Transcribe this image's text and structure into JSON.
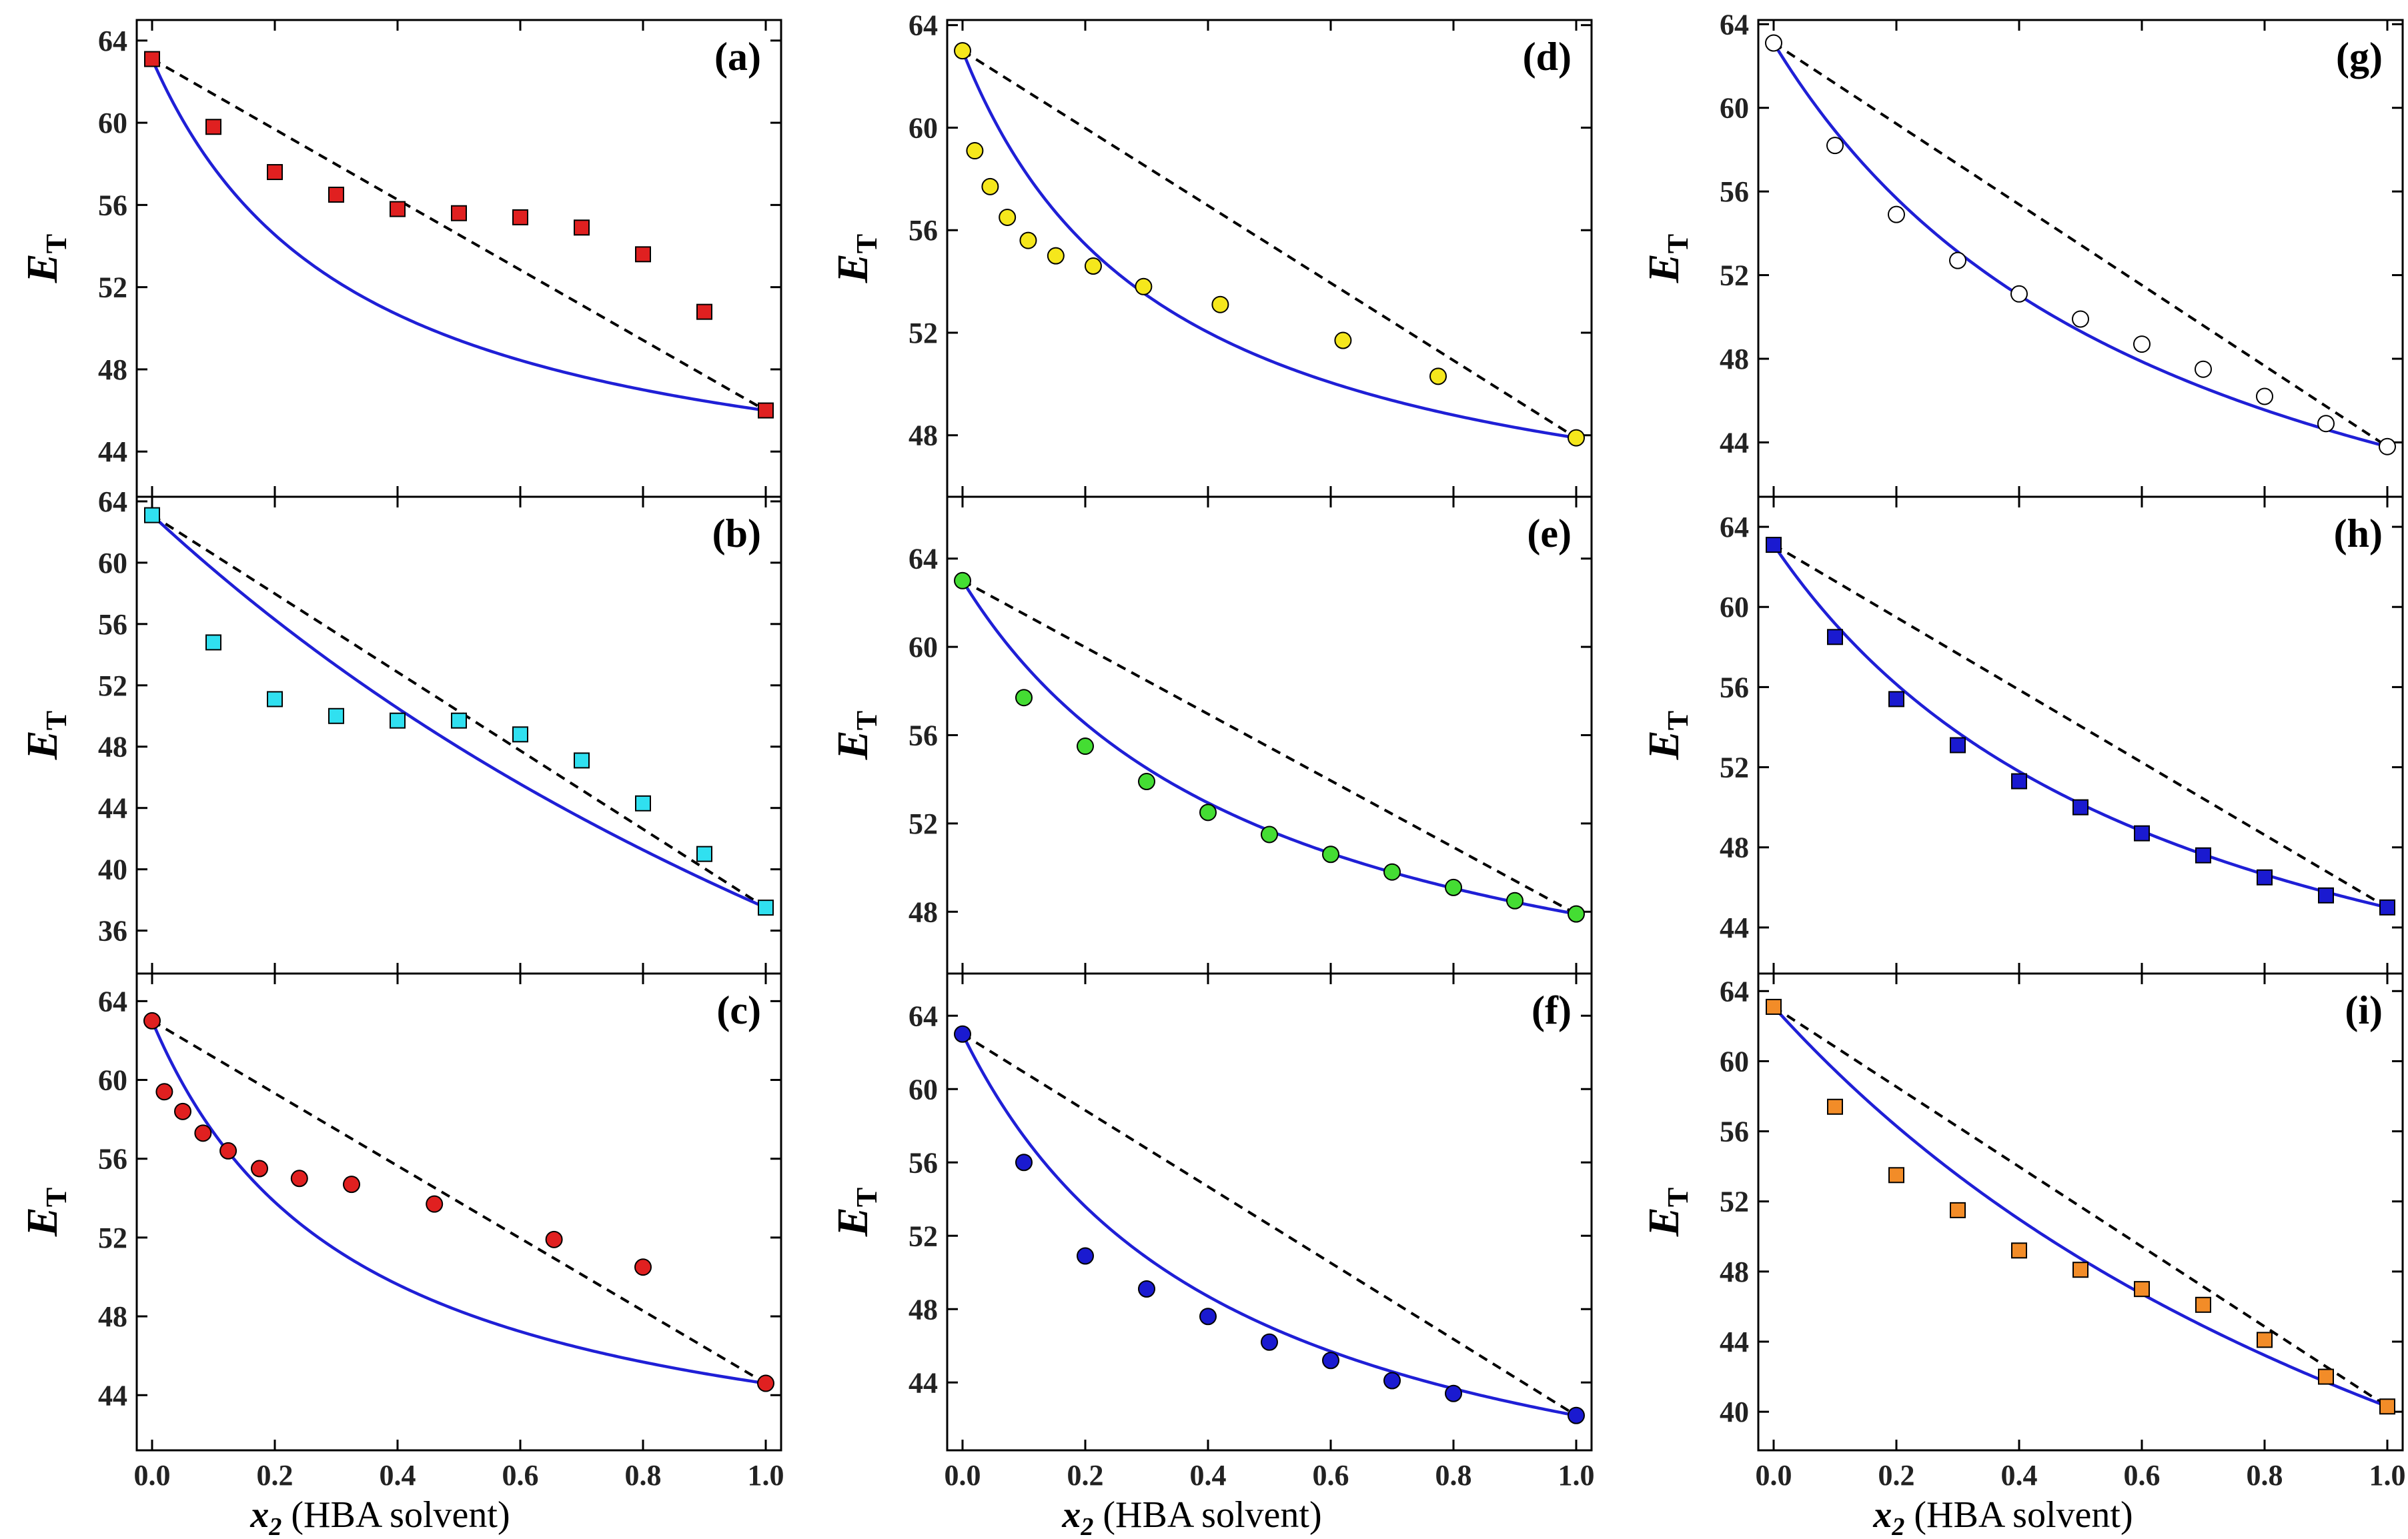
{
  "figure": {
    "columns": [
      {
        "xlabel_var": "x",
        "xlabel_sub": "2",
        "xlabel_rest": " (HBA solvent)"
      },
      {
        "xlabel_var": "x",
        "xlabel_sub": "2",
        "xlabel_rest": " (HBA solvent)"
      },
      {
        "xlabel_var": "x",
        "xlabel_sub": "2",
        "xlabel_rest": " (HBA solvent)"
      }
    ],
    "ylabel_main": "E",
    "ylabel_sub": "T",
    "x_ticks": [
      "0.0",
      "0.2",
      "0.4",
      "0.6",
      "0.8",
      "1.0"
    ]
  },
  "chart_data": [
    {
      "id": "a",
      "label": "(a)",
      "type": "scatter",
      "marker": "square",
      "color": "#e02020",
      "xlabel": "x2 (HBA solvent)",
      "ylabel": "ET",
      "xlim": [
        -0.025,
        1.025
      ],
      "ylim": [
        41.8,
        65
      ],
      "yticks": [
        44,
        48,
        52,
        56,
        60,
        64
      ],
      "x": [
        0.0,
        0.1,
        0.2,
        0.3,
        0.4,
        0.5,
        0.6,
        0.7,
        0.8,
        0.9,
        1.0
      ],
      "y": [
        63.1,
        59.8,
        57.6,
        56.5,
        55.8,
        55.6,
        55.4,
        54.9,
        53.6,
        50.8,
        46.0
      ],
      "ideal": [
        63.1,
        46.0
      ],
      "curve": {
        "y0": 63.1,
        "y1": 46.0,
        "k": 3.0
      }
    },
    {
      "id": "b",
      "label": "(b)",
      "type": "scatter",
      "marker": "square",
      "color": "#30e0f0",
      "xlabel": "x2 (HBA solvent)",
      "ylabel": "ET",
      "xlim": [
        -0.025,
        1.025
      ],
      "ylim": [
        33.2,
        64.3
      ],
      "yticks": [
        36,
        40,
        44,
        48,
        52,
        56,
        60,
        64
      ],
      "x": [
        0.0,
        0.1,
        0.2,
        0.3,
        0.4,
        0.5,
        0.6,
        0.7,
        0.8,
        0.9,
        1.0
      ],
      "y": [
        63.1,
        54.8,
        51.1,
        50.0,
        49.7,
        49.7,
        48.8,
        47.1,
        44.3,
        41.0,
        37.5
      ],
      "ideal": [
        63.1,
        37.5
      ],
      "curve": {
        "y0": 63.1,
        "y1": 37.5,
        "k": 0.45
      }
    },
    {
      "id": "c",
      "label": "(c)",
      "type": "scatter",
      "marker": "circle",
      "color": "#e02020",
      "xlabel": "x2 (HBA solvent)",
      "ylabel": "ET",
      "xlim": [
        -0.025,
        1.025
      ],
      "ylim": [
        41.2,
        65.4
      ],
      "yticks": [
        44,
        48,
        52,
        56,
        60,
        64
      ],
      "x": [
        0.0,
        0.02,
        0.05,
        0.083,
        0.124,
        0.175,
        0.24,
        0.325,
        0.46,
        0.655,
        0.8,
        1.0
      ],
      "y": [
        63.0,
        59.4,
        58.4,
        57.3,
        56.4,
        55.5,
        55.0,
        54.7,
        53.7,
        51.9,
        50.5,
        44.6
      ],
      "ideal": [
        63.0,
        44.6
      ],
      "curve": {
        "y0": 63.0,
        "y1": 44.6,
        "k": 3.0
      }
    },
    {
      "id": "d",
      "label": "(d)",
      "type": "scatter",
      "marker": "circle",
      "color": "#f5e71c",
      "xlabel": "x2 (HBA solvent)",
      "ylabel": "ET",
      "xlim": [
        -0.025,
        1.025
      ],
      "ylim": [
        45.6,
        64.2
      ],
      "yticks": [
        48,
        52,
        56,
        60,
        64
      ],
      "x": [
        0.0,
        0.02,
        0.045,
        0.073,
        0.107,
        0.152,
        0.213,
        0.295,
        0.42,
        0.62,
        0.775,
        1.0
      ],
      "y": [
        63.0,
        59.1,
        57.7,
        56.5,
        55.6,
        55.0,
        54.6,
        53.8,
        53.1,
        51.7,
        50.3,
        47.9
      ],
      "ideal": [
        63.0,
        47.9
      ],
      "curve": {
        "y0": 63.0,
        "y1": 47.9,
        "k": 3.0
      }
    },
    {
      "id": "e",
      "label": "(e)",
      "type": "scatter",
      "marker": "circle",
      "color": "#44dd33",
      "xlabel": "x2 (HBA solvent)",
      "ylabel": "ET",
      "xlim": [
        -0.025,
        1.025
      ],
      "ylim": [
        45.2,
        66.8
      ],
      "yticks": [
        48,
        52,
        56,
        60,
        64
      ],
      "x": [
        0.0,
        0.1,
        0.2,
        0.3,
        0.4,
        0.5,
        0.6,
        0.7,
        0.8,
        0.9,
        1.0
      ],
      "y": [
        63.0,
        57.7,
        55.5,
        53.9,
        52.5,
        51.5,
        50.6,
        49.8,
        49.1,
        48.5,
        47.9
      ],
      "ideal": [
        63.0,
        47.9
      ],
      "curve": {
        "y0": 63.0,
        "y1": 47.9,
        "k": 2.0
      }
    },
    {
      "id": "f",
      "label": "(f)",
      "type": "scatter",
      "marker": "circle",
      "color": "#1a1ad0",
      "xlabel": "x2 (HBA solvent)",
      "ylabel": "ET",
      "xlim": [
        -0.025,
        1.025
      ],
      "ylim": [
        40.3,
        66.3
      ],
      "yticks": [
        44,
        48,
        52,
        56,
        60,
        64
      ],
      "x": [
        0.0,
        0.1,
        0.2,
        0.3,
        0.4,
        0.5,
        0.6,
        0.7,
        0.8,
        1.0
      ],
      "y": [
        63.0,
        56.0,
        50.9,
        49.1,
        47.6,
        46.2,
        45.2,
        44.1,
        43.4,
        42.2
      ],
      "ideal": [
        63.0,
        42.2
      ],
      "curve": {
        "y0": 63.0,
        "y1": 42.2,
        "k": 2.3
      }
    },
    {
      "id": "g",
      "label": "(g)",
      "type": "scatter",
      "marker": "circle",
      "color": "#ffffff",
      "xlabel": "x2 (HBA solvent)",
      "ylabel": "ET",
      "xlim": [
        -0.025,
        1.025
      ],
      "ylim": [
        41.4,
        64.2
      ],
      "yticks": [
        44,
        48,
        52,
        56,
        60,
        64
      ],
      "x": [
        0.0,
        0.1,
        0.2,
        0.3,
        0.4,
        0.5,
        0.6,
        0.7,
        0.8,
        0.9,
        1.0
      ],
      "y": [
        63.1,
        58.2,
        54.9,
        52.7,
        51.1,
        49.9,
        48.7,
        47.5,
        46.2,
        44.9,
        43.8
      ],
      "ideal": [
        63.1,
        43.8
      ],
      "curve": {
        "y0": 63.1,
        "y1": 43.8,
        "k": 1.5
      }
    },
    {
      "id": "h",
      "label": "(h)",
      "type": "scatter",
      "marker": "square",
      "color": "#1a1ad0",
      "xlabel": "x2 (HBA solvent)",
      "ylabel": "ET",
      "xlim": [
        -0.025,
        1.025
      ],
      "ylim": [
        41.7,
        65.5
      ],
      "yticks": [
        44,
        48,
        52,
        56,
        60,
        64
      ],
      "x": [
        0.0,
        0.1,
        0.2,
        0.3,
        0.4,
        0.5,
        0.6,
        0.7,
        0.8,
        0.9,
        1.0
      ],
      "y": [
        63.1,
        58.5,
        55.4,
        53.1,
        51.3,
        50.0,
        48.7,
        47.6,
        46.5,
        45.6,
        45.0
      ],
      "ideal": [
        63.1,
        45.0
      ],
      "curve": {
        "y0": 63.1,
        "y1": 45.0,
        "k": 1.5
      }
    },
    {
      "id": "i",
      "label": "(i)",
      "type": "scatter",
      "marker": "square",
      "color": "#f28c28",
      "xlabel": "x2 (HBA solvent)",
      "ylabel": "ET",
      "xlim": [
        -0.025,
        1.025
      ],
      "ylim": [
        37.8,
        65.0
      ],
      "yticks": [
        40,
        44,
        48,
        52,
        56,
        60,
        64
      ],
      "x": [
        0.0,
        0.1,
        0.2,
        0.3,
        0.4,
        0.5,
        0.6,
        0.7,
        0.8,
        0.9,
        1.0
      ],
      "y": [
        63.1,
        57.4,
        53.5,
        51.5,
        49.2,
        48.1,
        47.0,
        46.1,
        44.1,
        42.0,
        40.3
      ],
      "ideal": [
        63.1,
        40.3
      ],
      "curve": {
        "y0": 63.1,
        "y1": 40.3,
        "k": 0.7
      }
    }
  ]
}
